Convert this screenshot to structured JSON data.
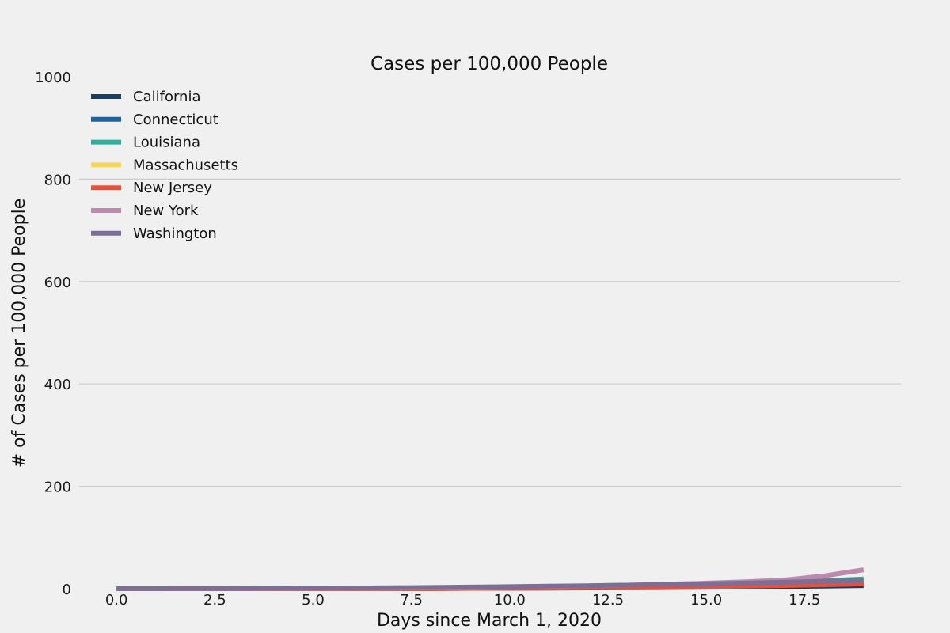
{
  "chart_data": {
    "type": "line",
    "title": "Cases per 100,000 People",
    "xlabel": "Days since March 1, 2020",
    "ylabel": "# of Cases per 100,000 People",
    "xlim": [
      -0.95,
      19.95
    ],
    "ylim": [
      0,
      1000
    ],
    "x_ticks": [
      0.0,
      2.5,
      5.0,
      7.5,
      10.0,
      12.5,
      15.0,
      17.5
    ],
    "x_tick_labels": [
      "0.0",
      "2.5",
      "5.0",
      "7.5",
      "10.0",
      "12.5",
      "15.0",
      "17.5"
    ],
    "y_ticks": [
      0,
      200,
      400,
      600,
      800,
      1000
    ],
    "y_tick_labels": [
      "0",
      "200",
      "400",
      "600",
      "800",
      "1000"
    ],
    "grid": "horizontal",
    "legend_position": "top-left",
    "x": [
      0,
      1,
      2,
      3,
      4,
      5,
      6,
      7,
      8,
      9,
      10,
      11,
      12,
      13,
      14,
      15,
      16,
      17,
      18,
      19
    ],
    "series": [
      {
        "name": "California",
        "color": "#1b3d5f",
        "values": [
          0.1,
          0.1,
          0.1,
          0.1,
          0.2,
          0.2,
          0.3,
          0.4,
          0.6,
          0.8,
          1.0,
          1.3,
          1.6,
          2.0,
          2.5,
          3.0,
          3.6,
          4.2,
          5.0,
          6.0
        ]
      },
      {
        "name": "Connecticut",
        "color": "#20639b",
        "values": [
          0,
          0,
          0,
          0,
          0,
          0.1,
          0.2,
          0.3,
          0.5,
          0.8,
          1.2,
          1.8,
          2.5,
          3.3,
          4.3,
          5.5,
          7.0,
          8.8,
          11.0,
          14.0
        ]
      },
      {
        "name": "Louisiana",
        "color": "#2fae9b",
        "values": [
          0,
          0,
          0,
          0,
          0,
          0,
          0.1,
          0.3,
          0.6,
          1.0,
          1.6,
          2.4,
          3.5,
          4.8,
          6.3,
          8.0,
          10.0,
          12.5,
          15.5,
          19.0
        ]
      },
      {
        "name": "Massachusetts",
        "color": "#f6d55c",
        "values": [
          0,
          0.1,
          0.1,
          0.2,
          0.3,
          0.5,
          0.7,
          1.0,
          1.4,
          1.9,
          2.5,
          3.2,
          4.0,
          5.0,
          6.2,
          7.6,
          9.2,
          11.0,
          13.0,
          15.5
        ]
      },
      {
        "name": "New Jersey",
        "color": "#e8503a",
        "values": [
          0,
          0,
          0,
          0,
          0.1,
          0.1,
          0.2,
          0.3,
          0.5,
          0.7,
          1.0,
          1.4,
          1.9,
          2.5,
          3.2,
          4.0,
          5.0,
          6.2,
          7.6,
          9.5
        ]
      },
      {
        "name": "New York",
        "color": "#bb8aac",
        "values": [
          0,
          0,
          0.1,
          0.2,
          0.4,
          0.6,
          0.9,
          1.3,
          1.8,
          2.5,
          3.3,
          4.3,
          5.5,
          7.0,
          8.8,
          11.0,
          13.5,
          17.0,
          25.0,
          37.0
        ]
      },
      {
        "name": "Washington",
        "color": "#7d6e95",
        "values": [
          0.1,
          0.2,
          0.3,
          0.5,
          0.7,
          1.0,
          1.4,
          1.9,
          2.5,
          3.2,
          4.0,
          4.9,
          5.9,
          7.0,
          8.2,
          9.5,
          11.0,
          12.6,
          14.3,
          16.0
        ]
      }
    ]
  }
}
